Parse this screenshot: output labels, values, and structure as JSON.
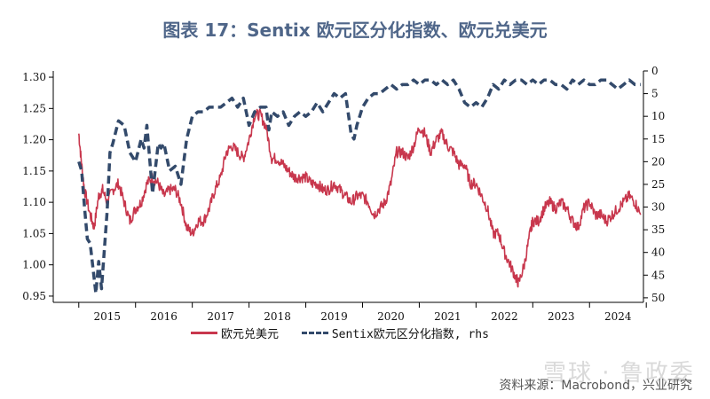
{
  "title": "图表 17：Sentix 欧元区分化指数、欧元兑美元",
  "source": "资料来源：Macrobond，兴业研究",
  "watermark": "雪球 · 鲁政委",
  "chart_data": {
    "type": "line",
    "title": "图表 17：Sentix 欧元区分化指数、欧元兑美元",
    "x_labels": [
      "2015",
      "2016",
      "2017",
      "2018",
      "2019",
      "2020",
      "2021",
      "2022",
      "2023",
      "2024"
    ],
    "y_left": {
      "ticks": [
        "0.95",
        "1.00",
        "1.05",
        "1.10",
        "1.15",
        "1.20",
        "1.25",
        "1.30"
      ],
      "range": [
        0.94,
        1.31
      ]
    },
    "y_right": {
      "ticks": [
        "0",
        "5",
        "10",
        "15",
        "20",
        "25",
        "30",
        "35",
        "40",
        "45",
        "50"
      ],
      "range": [
        0,
        51
      ],
      "inverted": true
    },
    "legend": "bottom",
    "series": [
      {
        "name": "欧元兑美元",
        "axis": "left",
        "color": "#c8374d",
        "style": "solid",
        "points": [
          [
            2015.0,
            1.21
          ],
          [
            2015.05,
            1.16
          ],
          [
            2015.1,
            1.12
          ],
          [
            2015.2,
            1.08
          ],
          [
            2015.27,
            1.06
          ],
          [
            2015.35,
            1.11
          ],
          [
            2015.42,
            1.12
          ],
          [
            2015.5,
            1.1
          ],
          [
            2015.6,
            1.12
          ],
          [
            2015.7,
            1.13
          ],
          [
            2015.8,
            1.1
          ],
          [
            2015.9,
            1.07
          ],
          [
            2016.0,
            1.09
          ],
          [
            2016.1,
            1.1
          ],
          [
            2016.2,
            1.13
          ],
          [
            2016.3,
            1.14
          ],
          [
            2016.4,
            1.13
          ],
          [
            2016.5,
            1.11
          ],
          [
            2016.6,
            1.12
          ],
          [
            2016.7,
            1.12
          ],
          [
            2016.8,
            1.1
          ],
          [
            2016.9,
            1.06
          ],
          [
            2017.0,
            1.05
          ],
          [
            2017.1,
            1.07
          ],
          [
            2017.2,
            1.07
          ],
          [
            2017.3,
            1.09
          ],
          [
            2017.4,
            1.12
          ],
          [
            2017.5,
            1.14
          ],
          [
            2017.6,
            1.18
          ],
          [
            2017.7,
            1.19
          ],
          [
            2017.8,
            1.18
          ],
          [
            2017.9,
            1.17
          ],
          [
            2018.0,
            1.2
          ],
          [
            2018.1,
            1.24
          ],
          [
            2018.2,
            1.24
          ],
          [
            2018.3,
            1.22
          ],
          [
            2018.4,
            1.17
          ],
          [
            2018.5,
            1.17
          ],
          [
            2018.6,
            1.16
          ],
          [
            2018.7,
            1.15
          ],
          [
            2018.8,
            1.14
          ],
          [
            2018.9,
            1.14
          ],
          [
            2019.0,
            1.14
          ],
          [
            2019.1,
            1.13
          ],
          [
            2019.2,
            1.13
          ],
          [
            2019.3,
            1.12
          ],
          [
            2019.4,
            1.12
          ],
          [
            2019.5,
            1.13
          ],
          [
            2019.6,
            1.12
          ],
          [
            2019.7,
            1.11
          ],
          [
            2019.8,
            1.1
          ],
          [
            2019.9,
            1.11
          ],
          [
            2020.0,
            1.11
          ],
          [
            2020.1,
            1.1
          ],
          [
            2020.2,
            1.08
          ],
          [
            2020.3,
            1.09
          ],
          [
            2020.4,
            1.1
          ],
          [
            2020.5,
            1.13
          ],
          [
            2020.6,
            1.18
          ],
          [
            2020.7,
            1.18
          ],
          [
            2020.8,
            1.17
          ],
          [
            2020.9,
            1.19
          ],
          [
            2021.0,
            1.22
          ],
          [
            2021.1,
            1.21
          ],
          [
            2021.2,
            1.18
          ],
          [
            2021.3,
            1.2
          ],
          [
            2021.4,
            1.21
          ],
          [
            2021.5,
            1.19
          ],
          [
            2021.6,
            1.18
          ],
          [
            2021.7,
            1.16
          ],
          [
            2021.8,
            1.16
          ],
          [
            2021.9,
            1.13
          ],
          [
            2022.0,
            1.13
          ],
          [
            2022.1,
            1.11
          ],
          [
            2022.2,
            1.09
          ],
          [
            2022.3,
            1.05
          ],
          [
            2022.4,
            1.05
          ],
          [
            2022.5,
            1.02
          ],
          [
            2022.6,
            1.0
          ],
          [
            2022.7,
            0.98
          ],
          [
            2022.75,
            0.97
          ],
          [
            2022.85,
            1.0
          ],
          [
            2022.95,
            1.05
          ],
          [
            2023.0,
            1.07
          ],
          [
            2023.1,
            1.07
          ],
          [
            2023.2,
            1.09
          ],
          [
            2023.3,
            1.1
          ],
          [
            2023.4,
            1.09
          ],
          [
            2023.5,
            1.1
          ],
          [
            2023.6,
            1.09
          ],
          [
            2023.7,
            1.07
          ],
          [
            2023.8,
            1.06
          ],
          [
            2023.9,
            1.09
          ],
          [
            2024.0,
            1.1
          ],
          [
            2024.1,
            1.08
          ],
          [
            2024.2,
            1.08
          ],
          [
            2024.3,
            1.07
          ],
          [
            2024.4,
            1.08
          ],
          [
            2024.5,
            1.09
          ],
          [
            2024.6,
            1.1
          ],
          [
            2024.7,
            1.11
          ],
          [
            2024.8,
            1.1
          ],
          [
            2024.9,
            1.08
          ]
        ]
      },
      {
        "name": "Sentix欧元区分化指数, rhs",
        "axis": "right",
        "color": "#334a6b",
        "style": "dashed",
        "points": [
          [
            2015.0,
            20
          ],
          [
            2015.05,
            22
          ],
          [
            2015.1,
            30
          ],
          [
            2015.15,
            37
          ],
          [
            2015.2,
            38
          ],
          [
            2015.3,
            49
          ],
          [
            2015.35,
            42
          ],
          [
            2015.4,
            48
          ],
          [
            2015.5,
            31
          ],
          [
            2015.55,
            18
          ],
          [
            2015.6,
            16
          ],
          [
            2015.7,
            11
          ],
          [
            2015.8,
            12
          ],
          [
            2015.9,
            18
          ],
          [
            2016.0,
            20
          ],
          [
            2016.1,
            15
          ],
          [
            2016.15,
            17
          ],
          [
            2016.2,
            12
          ],
          [
            2016.3,
            27
          ],
          [
            2016.4,
            16
          ],
          [
            2016.45,
            17
          ],
          [
            2016.5,
            16
          ],
          [
            2016.6,
            22
          ],
          [
            2016.7,
            21
          ],
          [
            2016.8,
            25
          ],
          [
            2016.9,
            15
          ],
          [
            2017.0,
            10
          ],
          [
            2017.1,
            9
          ],
          [
            2017.2,
            9
          ],
          [
            2017.3,
            8
          ],
          [
            2017.4,
            8
          ],
          [
            2017.5,
            8
          ],
          [
            2017.6,
            7
          ],
          [
            2017.7,
            6
          ],
          [
            2017.8,
            8
          ],
          [
            2017.9,
            6
          ],
          [
            2018.0,
            12
          ],
          [
            2018.1,
            9
          ],
          [
            2018.2,
            8
          ],
          [
            2018.3,
            8
          ],
          [
            2018.35,
            13
          ],
          [
            2018.4,
            9
          ],
          [
            2018.5,
            10
          ],
          [
            2018.6,
            9
          ],
          [
            2018.7,
            12
          ],
          [
            2018.8,
            10
          ],
          [
            2018.9,
            9
          ],
          [
            2019.0,
            10
          ],
          [
            2019.1,
            9
          ],
          [
            2019.2,
            7
          ],
          [
            2019.3,
            9
          ],
          [
            2019.4,
            7
          ],
          [
            2019.5,
            5
          ],
          [
            2019.6,
            6
          ],
          [
            2019.7,
            5
          ],
          [
            2019.8,
            14
          ],
          [
            2019.85,
            15
          ],
          [
            2019.9,
            12
          ],
          [
            2020.0,
            8
          ],
          [
            2020.1,
            6
          ],
          [
            2020.2,
            5
          ],
          [
            2020.3,
            5
          ],
          [
            2020.4,
            4
          ],
          [
            2020.5,
            3
          ],
          [
            2020.6,
            4
          ],
          [
            2020.7,
            3
          ],
          [
            2020.8,
            3
          ],
          [
            2020.9,
            2
          ],
          [
            2021.0,
            3
          ],
          [
            2021.1,
            2
          ],
          [
            2021.2,
            2
          ],
          [
            2021.3,
            3
          ],
          [
            2021.4,
            2
          ],
          [
            2021.5,
            3
          ],
          [
            2021.6,
            2
          ],
          [
            2021.7,
            4
          ],
          [
            2021.8,
            7
          ],
          [
            2021.9,
            8
          ],
          [
            2022.0,
            7
          ],
          [
            2022.1,
            8
          ],
          [
            2022.2,
            6
          ],
          [
            2022.3,
            3
          ],
          [
            2022.4,
            4
          ],
          [
            2022.5,
            2
          ],
          [
            2022.6,
            3
          ],
          [
            2022.7,
            2
          ],
          [
            2022.8,
            2
          ],
          [
            2022.9,
            3
          ],
          [
            2023.0,
            2
          ],
          [
            2023.1,
            3
          ],
          [
            2023.2,
            2
          ],
          [
            2023.3,
            2
          ],
          [
            2023.4,
            3
          ],
          [
            2023.5,
            3
          ],
          [
            2023.6,
            4
          ],
          [
            2023.7,
            2
          ],
          [
            2023.8,
            3
          ],
          [
            2023.9,
            2
          ],
          [
            2024.0,
            3
          ],
          [
            2024.1,
            3
          ],
          [
            2024.2,
            2
          ],
          [
            2024.3,
            2
          ],
          [
            2024.4,
            3
          ],
          [
            2024.5,
            4
          ],
          [
            2024.6,
            3
          ],
          [
            2024.7,
            2
          ],
          [
            2024.8,
            3
          ],
          [
            2024.9,
            3
          ]
        ]
      }
    ]
  }
}
